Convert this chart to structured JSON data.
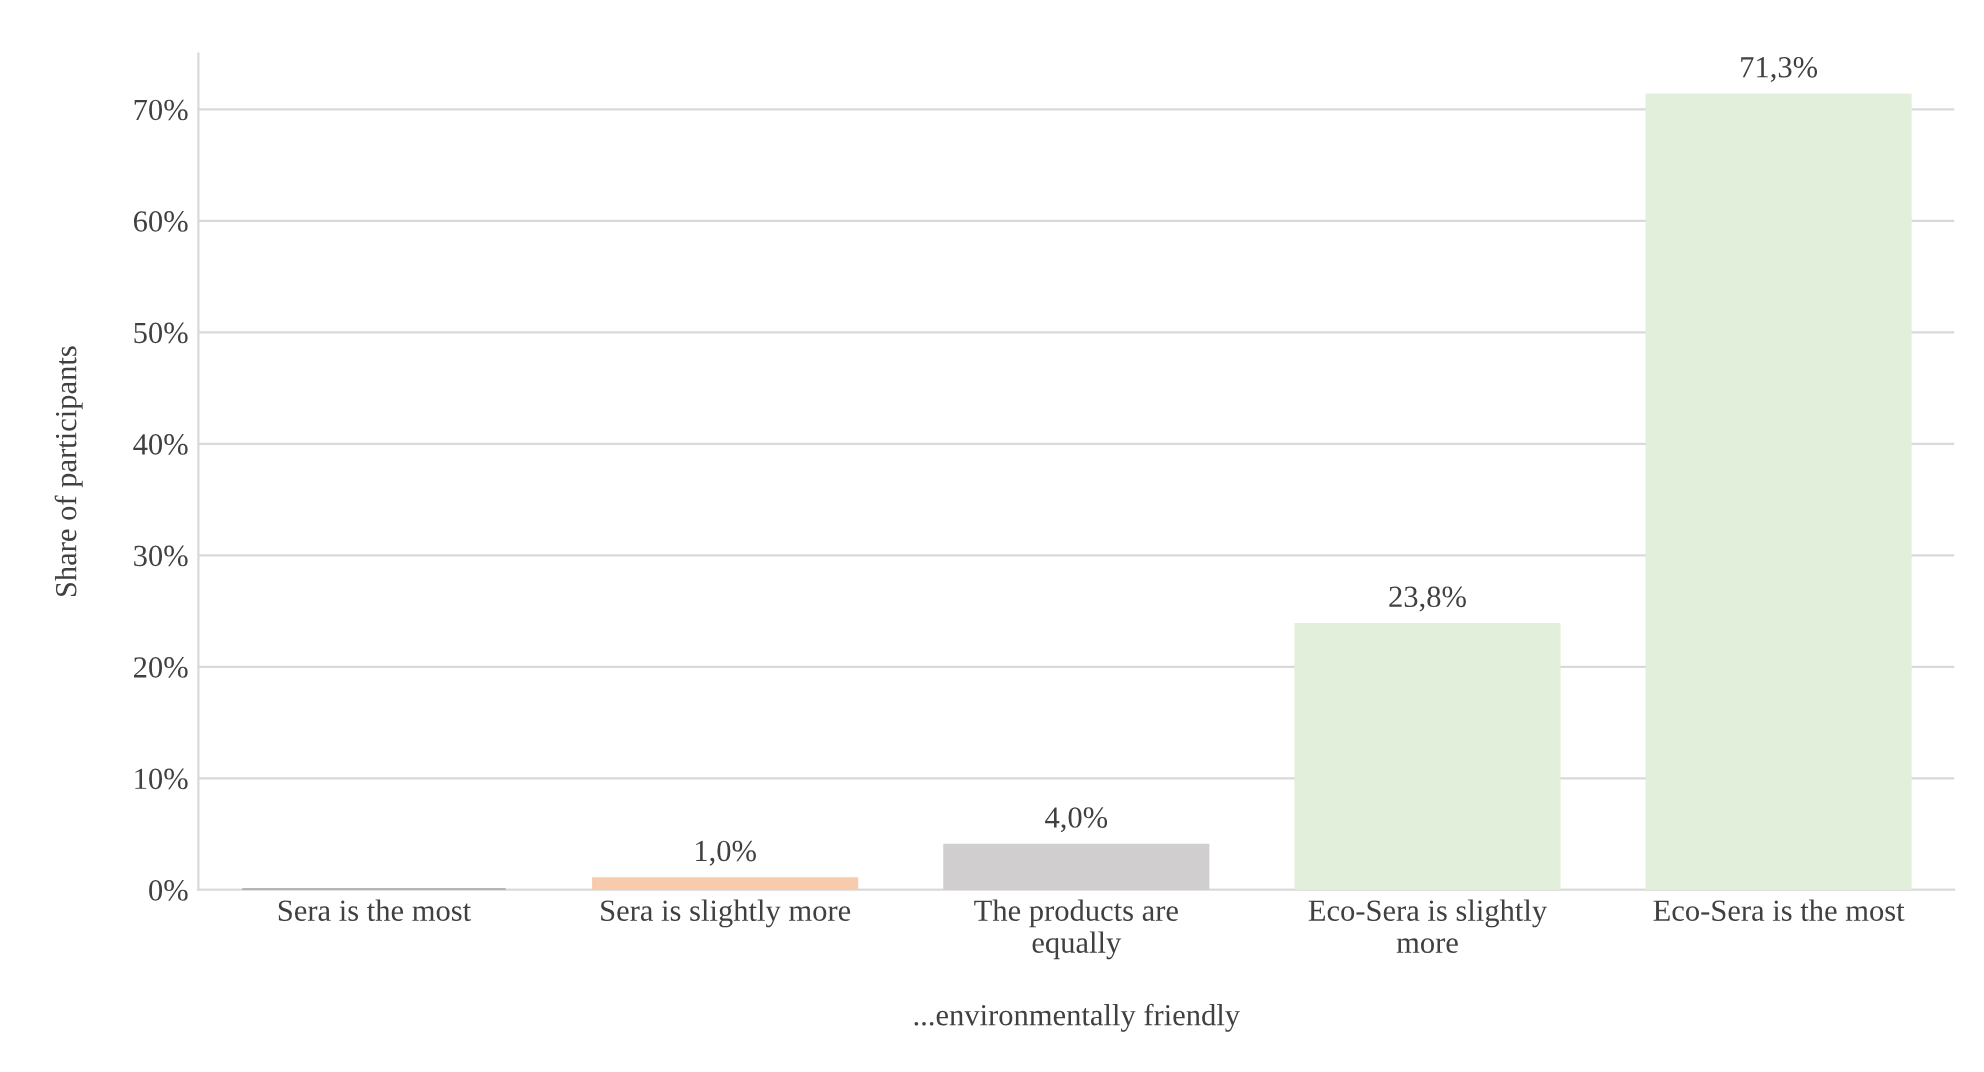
{
  "chart_data": {
    "type": "bar",
    "xlabel": "...environmentally friendly",
    "ylabel": "Share of participants",
    "categories": [
      "Sera is the most",
      "Sera is slightly more",
      "The products are\nequally",
      "Eco-Sera is slightly\nmore",
      "Eco-Sera is the most"
    ],
    "values": [
      0,
      1.0,
      4.0,
      23.8,
      71.3
    ],
    "colors": [
      "#a5a5a5",
      "#f8cbad",
      "#d0cece",
      "#e2efda",
      "#e2efda"
    ],
    "value_labels": [
      null,
      "1,0%",
      "4,0%",
      "23,8%",
      "71,3%"
    ],
    "ylim": [
      0,
      75
    ],
    "yticks": [
      {
        "value": 0,
        "label": "0%"
      },
      {
        "value": 10,
        "label": "10%"
      },
      {
        "value": 20,
        "label": "20%"
      },
      {
        "value": 30,
        "label": "30%"
      },
      {
        "value": 40,
        "label": "40%"
      },
      {
        "value": 50,
        "label": "50%"
      },
      {
        "value": 60,
        "label": "60%"
      },
      {
        "value": 70,
        "label": "70%"
      }
    ],
    "grid": "y"
  }
}
